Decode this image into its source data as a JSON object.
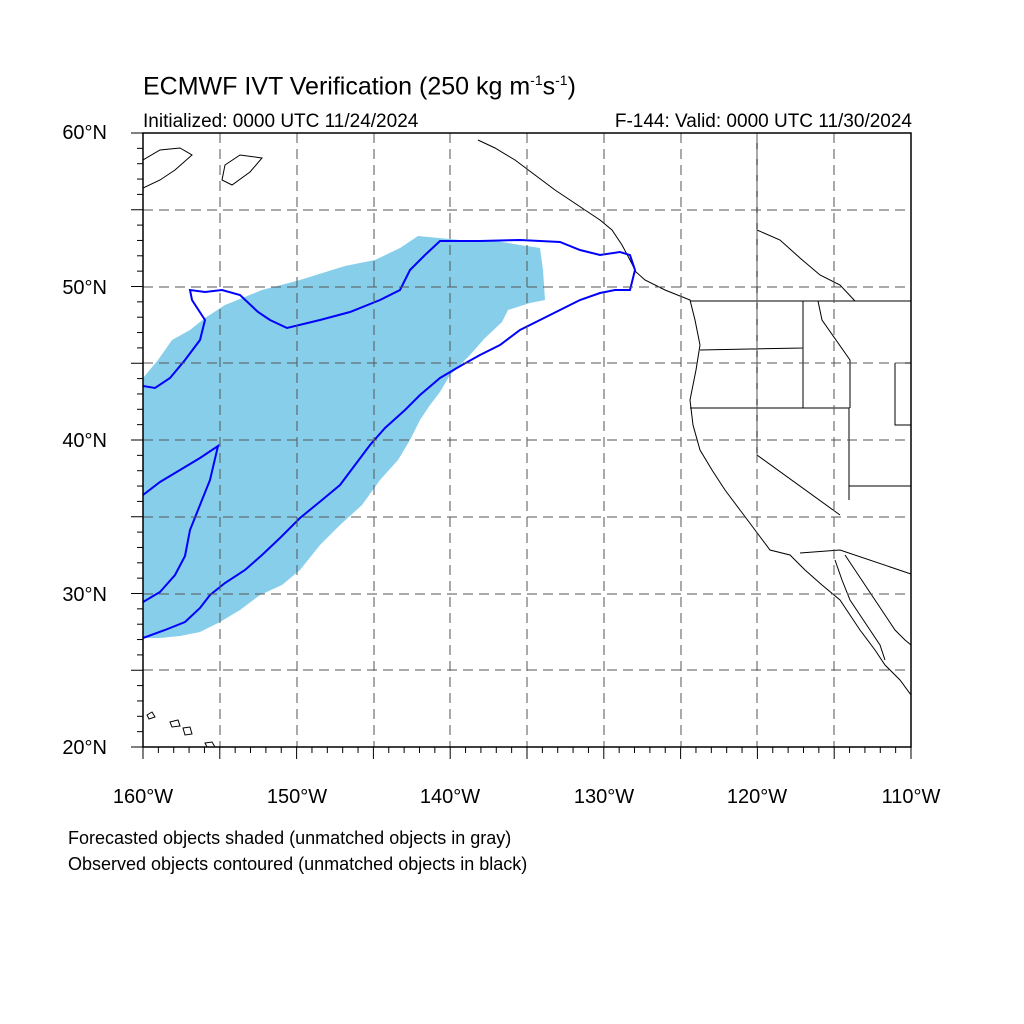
{
  "header": {
    "title_main": "ECMWF IVT Verification (250 kg m",
    "title_exp1": "-1",
    "title_mid": "s",
    "title_exp2": "-1",
    "title_end": ")",
    "initialized": "Initialized: 0000 UTC 11/24/2024",
    "valid": "F-144: Valid: 0000 UTC 11/30/2024"
  },
  "axes": {
    "lat_labels": [
      "60°N",
      "50°N",
      "40°N",
      "30°N",
      "20°N"
    ],
    "lon_labels": [
      "160°W",
      "150°W",
      "140°W",
      "130°W",
      "120°W",
      "110°W"
    ]
  },
  "legend": {
    "line1": "Forecasted objects shaded (unmatched objects in gray)",
    "line2": "Observed objects contoured (unmatched objects in black)"
  },
  "colors": {
    "forecast_fill": "#87ceeb",
    "observed_contour": "#0000ff",
    "coastline": "#000000",
    "grid": "#555555"
  },
  "map": {
    "projection": "cylindrical-equidistant",
    "lon_range": [
      -160,
      -110
    ],
    "lat_range": [
      20,
      60
    ],
    "grid_spacing_deg": 5
  }
}
